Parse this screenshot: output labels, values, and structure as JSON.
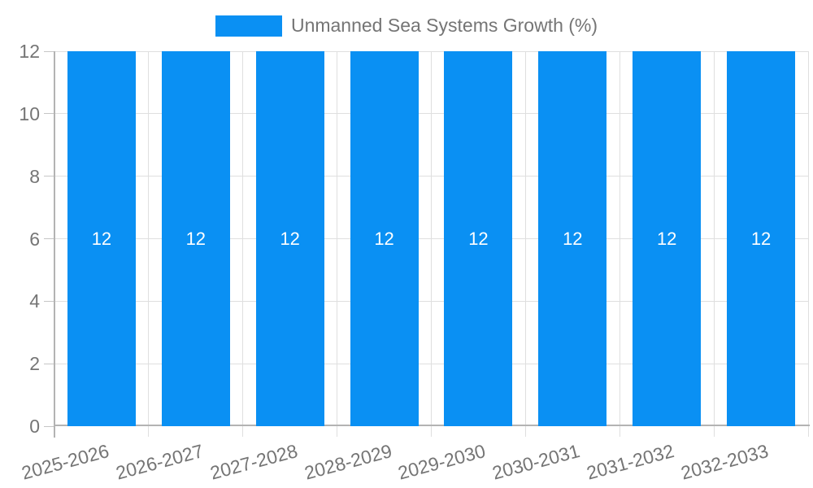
{
  "chart": {
    "legend": {
      "label": "Unmanned Sea Systems Growth (%)"
    }
  },
  "chart_data": {
    "type": "bar",
    "title": "",
    "categories": [
      "2025-2026",
      "2026-2027",
      "2027-2028",
      "2028-2029",
      "2029-2030",
      "2030-2031",
      "2031-2032",
      "2032-2033"
    ],
    "series": [
      {
        "name": "Unmanned Sea Systems Growth (%)",
        "values": [
          12,
          12,
          12,
          12,
          12,
          12,
          12,
          12
        ]
      }
    ],
    "value_labels": [
      "12",
      "12",
      "12",
      "12",
      "12",
      "12",
      "12",
      "12"
    ],
    "xlabel": "",
    "ylabel": "",
    "ylim": [
      0,
      12
    ],
    "yticks": [
      0,
      2,
      4,
      6,
      8,
      10,
      12
    ],
    "grid": true,
    "legend_position": "top-center",
    "x_tick_rotation_deg": -15,
    "colors": {
      "bar": "#0a90f3",
      "axis": "#b3b3b3",
      "grid": "#dfdfdf",
      "tick": "#c6c6c6",
      "text": "#757575",
      "value_label": "#ffffff",
      "background": "#ffffff"
    }
  }
}
